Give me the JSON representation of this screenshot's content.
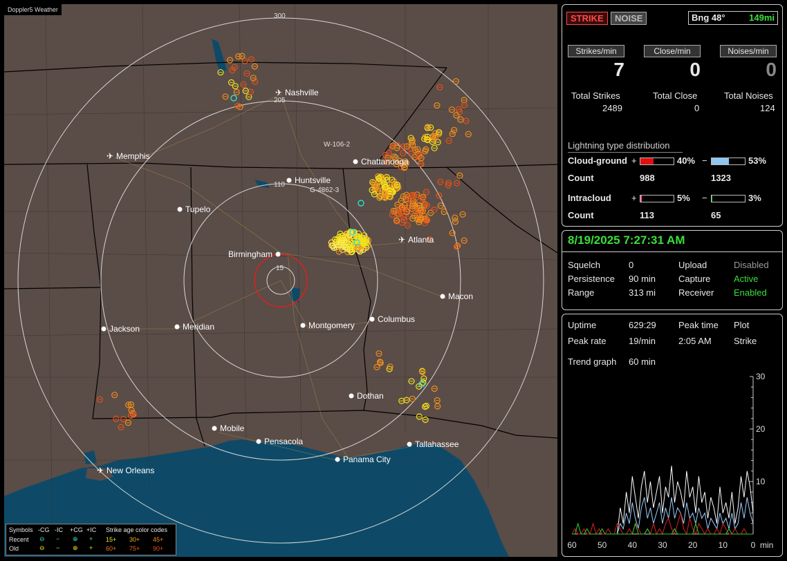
{
  "app_badge": "Doppler5 Weather",
  "map": {
    "range_labels": [
      "300",
      "205",
      "110",
      "15"
    ],
    "cities": [
      {
        "name": "Nashville",
        "airport": true
      },
      {
        "name": "Memphis",
        "airport": true
      },
      {
        "name": "Chattanooga",
        "airport": false
      },
      {
        "name": "Huntsville",
        "airport": false
      },
      {
        "name": "Tupelo",
        "airport": false
      },
      {
        "name": "Atlanta",
        "airport": true
      },
      {
        "name": "Birmingham",
        "airport": false
      },
      {
        "name": "Macon",
        "airport": false
      },
      {
        "name": "Jackson",
        "airport": false
      },
      {
        "name": "Meridian",
        "airport": false
      },
      {
        "name": "Montgomery",
        "airport": false
      },
      {
        "name": "Columbus",
        "airport": false
      },
      {
        "name": "Dothan",
        "airport": false
      },
      {
        "name": "Mobile",
        "airport": false
      },
      {
        "name": "Pensacola",
        "airport": false
      },
      {
        "name": "Tallahassee",
        "airport": false
      },
      {
        "name": "Panama City",
        "airport": false
      },
      {
        "name": "New Orleans",
        "airport": true
      }
    ],
    "annotations": [
      "W-106-2",
      "G-4862-3"
    ],
    "legend": {
      "header": [
        "Symbols",
        "-CG",
        "-IC",
        "+CG",
        "+IC",
        "Strike age color codes"
      ],
      "recent_label": "Recent",
      "old_label": "Old",
      "recent_codes": [
        "15+",
        "30+",
        "45+"
      ],
      "old_codes": [
        "60+",
        "75+",
        "90+"
      ]
    },
    "colors": {
      "land": "#5a4c47",
      "water": "#0e4a68",
      "recent": "#f2e21c",
      "mid": "#f0901c",
      "old": "#e0541c",
      "cyan": "#2ee0d0"
    }
  },
  "top": {
    "strike_btn": "STRIKE",
    "noise_btn": "NOISE",
    "bearing": "Bng 48°",
    "distance": "149mi"
  },
  "rates": {
    "strikes_label": "Strikes/min",
    "close_label": "Close/min",
    "noises_label": "Noises/min",
    "strikes": "7",
    "close": "0",
    "noises": "0",
    "total_strikes_label": "Total Strikes",
    "total_close_label": "Total Close",
    "total_noises_label": "Total Noises",
    "total_strikes": "2489",
    "total_close": "0",
    "total_noises": "124"
  },
  "distribution": {
    "title": "Lightning type distribution",
    "cg_label": "Cloud-ground",
    "ic_label": "Intracloud",
    "count_label": "Count",
    "plus": "+",
    "minus": "−",
    "cg_pos_pct": "40%",
    "cg_neg_pct": "53%",
    "cg_pos_count": "988",
    "cg_neg_count": "1323",
    "ic_pos_pct": "5%",
    "ic_neg_pct": "3%",
    "ic_pos_count": "113",
    "ic_neg_count": "65",
    "cg_pos_val": 40,
    "cg_neg_val": 53,
    "ic_pos_val": 5,
    "ic_neg_val": 3
  },
  "status": {
    "datetime": "8/19/2025 7:27:31 AM",
    "squelch_label": "Squelch",
    "squelch": "0",
    "persistence_label": "Persistence",
    "persistence": "90 min",
    "range_label": "Range",
    "range": "313 mi",
    "upload_label": "Upload",
    "upload": "Disabled",
    "capture_label": "Capture",
    "capture": "Active",
    "receiver_label": "Receiver",
    "receiver": "Enabled"
  },
  "stats": {
    "uptime_label": "Uptime",
    "uptime": "629:29",
    "peak_time_label": "Peak time",
    "peak_time": "2:05 AM",
    "plot_label": "Plot",
    "plot": "Strike",
    "peak_rate_label": "Peak rate",
    "peak_rate": "19/min",
    "trend_label": "Trend graph",
    "trend": "60 min"
  },
  "chart_data": {
    "type": "line",
    "title": "",
    "x_ticks": [
      "60",
      "50",
      "40",
      "30",
      "20",
      "10",
      "0"
    ],
    "x_unit": "min",
    "y_ticks": [
      "30",
      "20",
      "10"
    ],
    "ylim": [
      0,
      30
    ],
    "xlim": [
      60,
      0
    ],
    "series": [
      {
        "color": "#ffffff",
        "values": [
          0,
          0,
          0,
          0,
          0,
          0,
          0,
          0,
          0,
          0,
          0,
          0,
          0,
          0,
          0,
          0,
          5,
          2,
          8,
          4,
          11,
          7,
          3,
          9,
          12,
          6,
          10,
          5,
          8,
          11,
          4,
          9,
          7,
          13,
          6,
          10,
          8,
          5,
          12,
          7,
          9,
          4,
          11,
          6,
          8,
          3,
          7,
          5,
          2,
          9,
          4,
          6,
          3,
          8,
          2,
          5,
          11,
          7,
          12,
          9,
          4
        ]
      },
      {
        "color": "#9ecfff",
        "values": [
          0,
          0,
          0,
          0,
          0,
          0,
          0,
          0,
          0,
          0,
          0,
          0,
          0,
          0,
          0,
          0,
          2,
          1,
          4,
          2,
          6,
          3,
          1,
          5,
          7,
          3,
          5,
          2,
          4,
          6,
          2,
          5,
          3,
          7,
          3,
          5,
          4,
          2,
          6,
          3,
          4,
          2,
          5,
          3,
          4,
          1,
          3,
          2,
          1,
          4,
          2,
          3,
          1,
          4,
          1,
          2,
          6,
          3,
          7,
          4,
          2
        ]
      },
      {
        "color": "#e02020",
        "values": [
          0,
          1,
          0,
          0,
          1,
          0,
          0,
          2,
          0,
          1,
          0,
          0,
          1,
          0,
          0,
          2,
          1,
          0,
          0,
          1,
          0,
          2,
          1,
          0,
          0,
          1,
          0,
          2,
          0,
          1,
          0,
          2,
          3,
          1,
          0,
          2,
          4,
          1,
          0,
          3,
          1,
          0,
          2,
          1,
          0,
          1,
          0,
          0,
          1,
          0,
          2,
          1,
          0,
          0,
          1,
          0,
          0,
          1,
          0,
          0,
          0
        ]
      },
      {
        "color": "#30d030",
        "values": [
          0,
          0,
          2,
          0,
          0,
          1,
          0,
          0,
          0,
          0,
          1,
          0,
          0,
          0,
          0,
          0,
          0,
          0,
          0,
          0,
          0,
          2,
          0,
          0,
          0,
          1,
          0,
          0,
          0,
          0,
          0,
          0,
          0,
          0,
          1,
          0,
          0,
          0,
          0,
          0,
          0,
          2,
          0,
          0,
          0,
          0,
          0,
          0,
          0,
          0,
          0,
          0,
          1,
          0,
          0,
          0,
          0,
          0,
          0,
          0,
          0
        ]
      }
    ]
  }
}
